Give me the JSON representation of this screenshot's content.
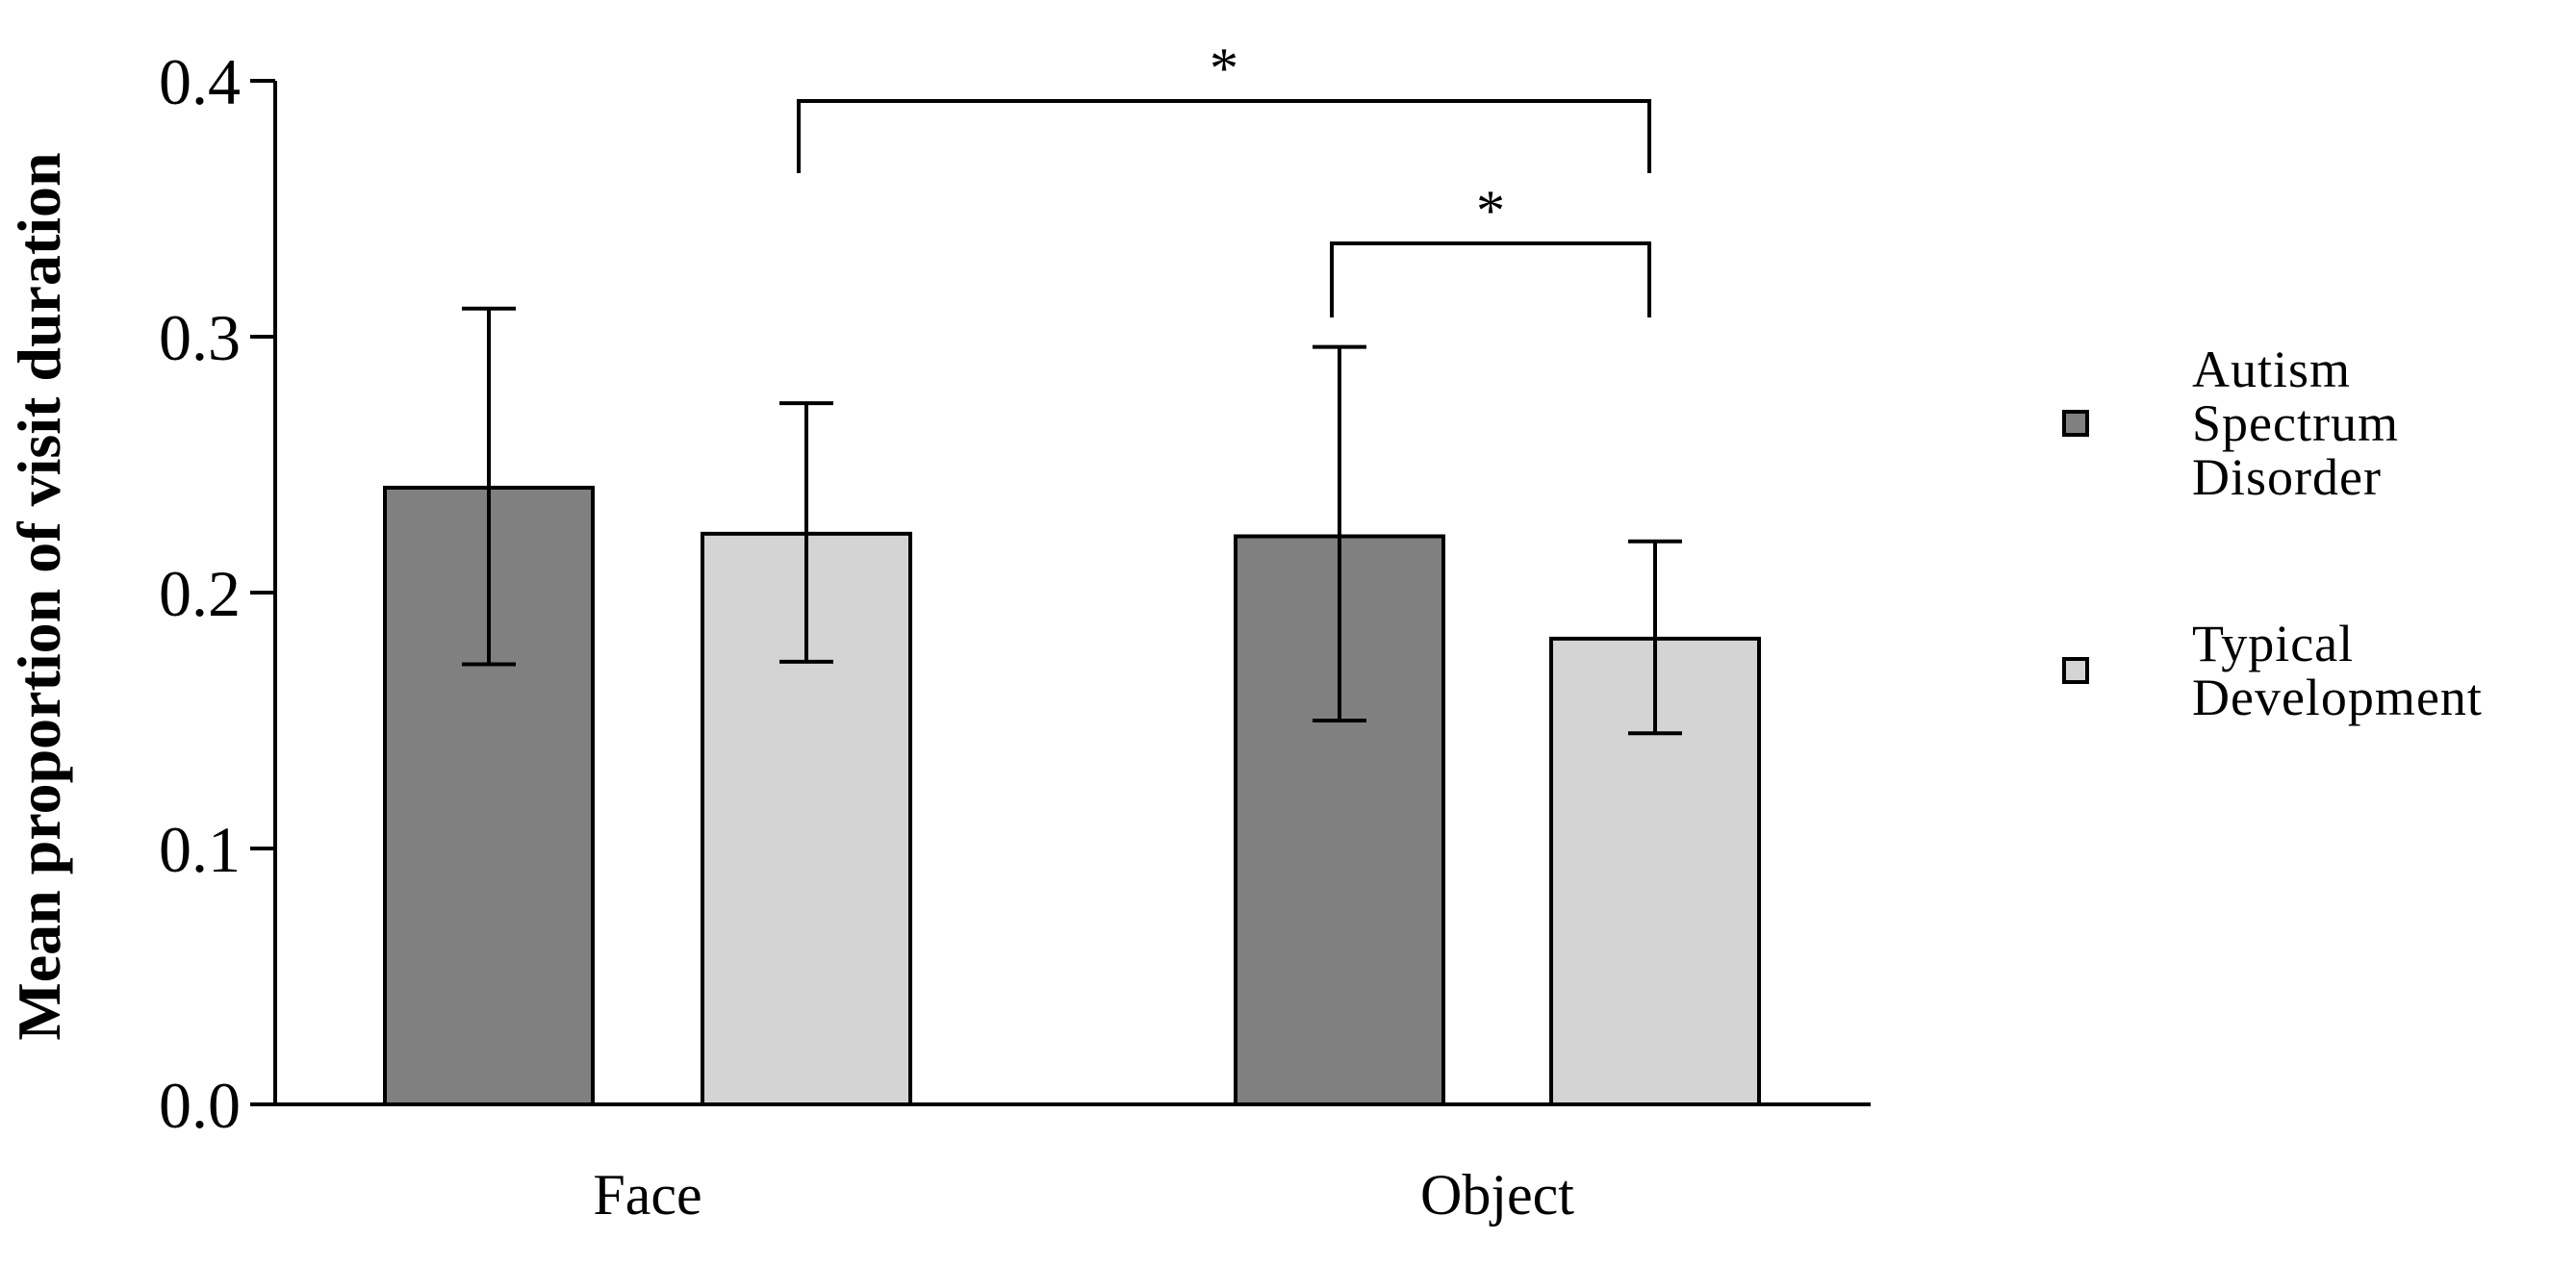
{
  "chart_data": {
    "type": "bar",
    "categories": [
      "Face",
      "Object"
    ],
    "series": [
      {
        "name": "Autism Spectrum Disorder",
        "legend_lines": [
          "Autism",
          "Spectrum",
          "Disorder"
        ],
        "color": "#808080",
        "values": [
          0.241,
          0.222
        ],
        "error_low": [
          0.172,
          0.15
        ],
        "error_high": [
          0.311,
          0.296
        ]
      },
      {
        "name": "Typical Development",
        "legend_lines": [
          "Typical",
          "Development"
        ],
        "color": "#d4d4d4",
        "values": [
          0.223,
          0.182
        ],
        "error_low": [
          0.173,
          0.145
        ],
        "error_high": [
          0.274,
          0.22
        ]
      }
    ],
    "title": "",
    "xlabel": "",
    "ylabel": "Mean proportion of visit duration",
    "ylim": [
      0.0,
      0.4
    ],
    "yticks": [
      "0.0",
      "0.1",
      "0.2",
      "0.3",
      "0.4"
    ],
    "grid": false,
    "legend_position": "right",
    "significance": [
      {
        "from": {
          "category": 0,
          "series": 1
        },
        "to": {
          "category": 1,
          "series": 1
        },
        "label": "*"
      },
      {
        "from": {
          "category": 1,
          "series": 0
        },
        "to": {
          "category": 1,
          "series": 1
        },
        "label": "*"
      }
    ]
  }
}
